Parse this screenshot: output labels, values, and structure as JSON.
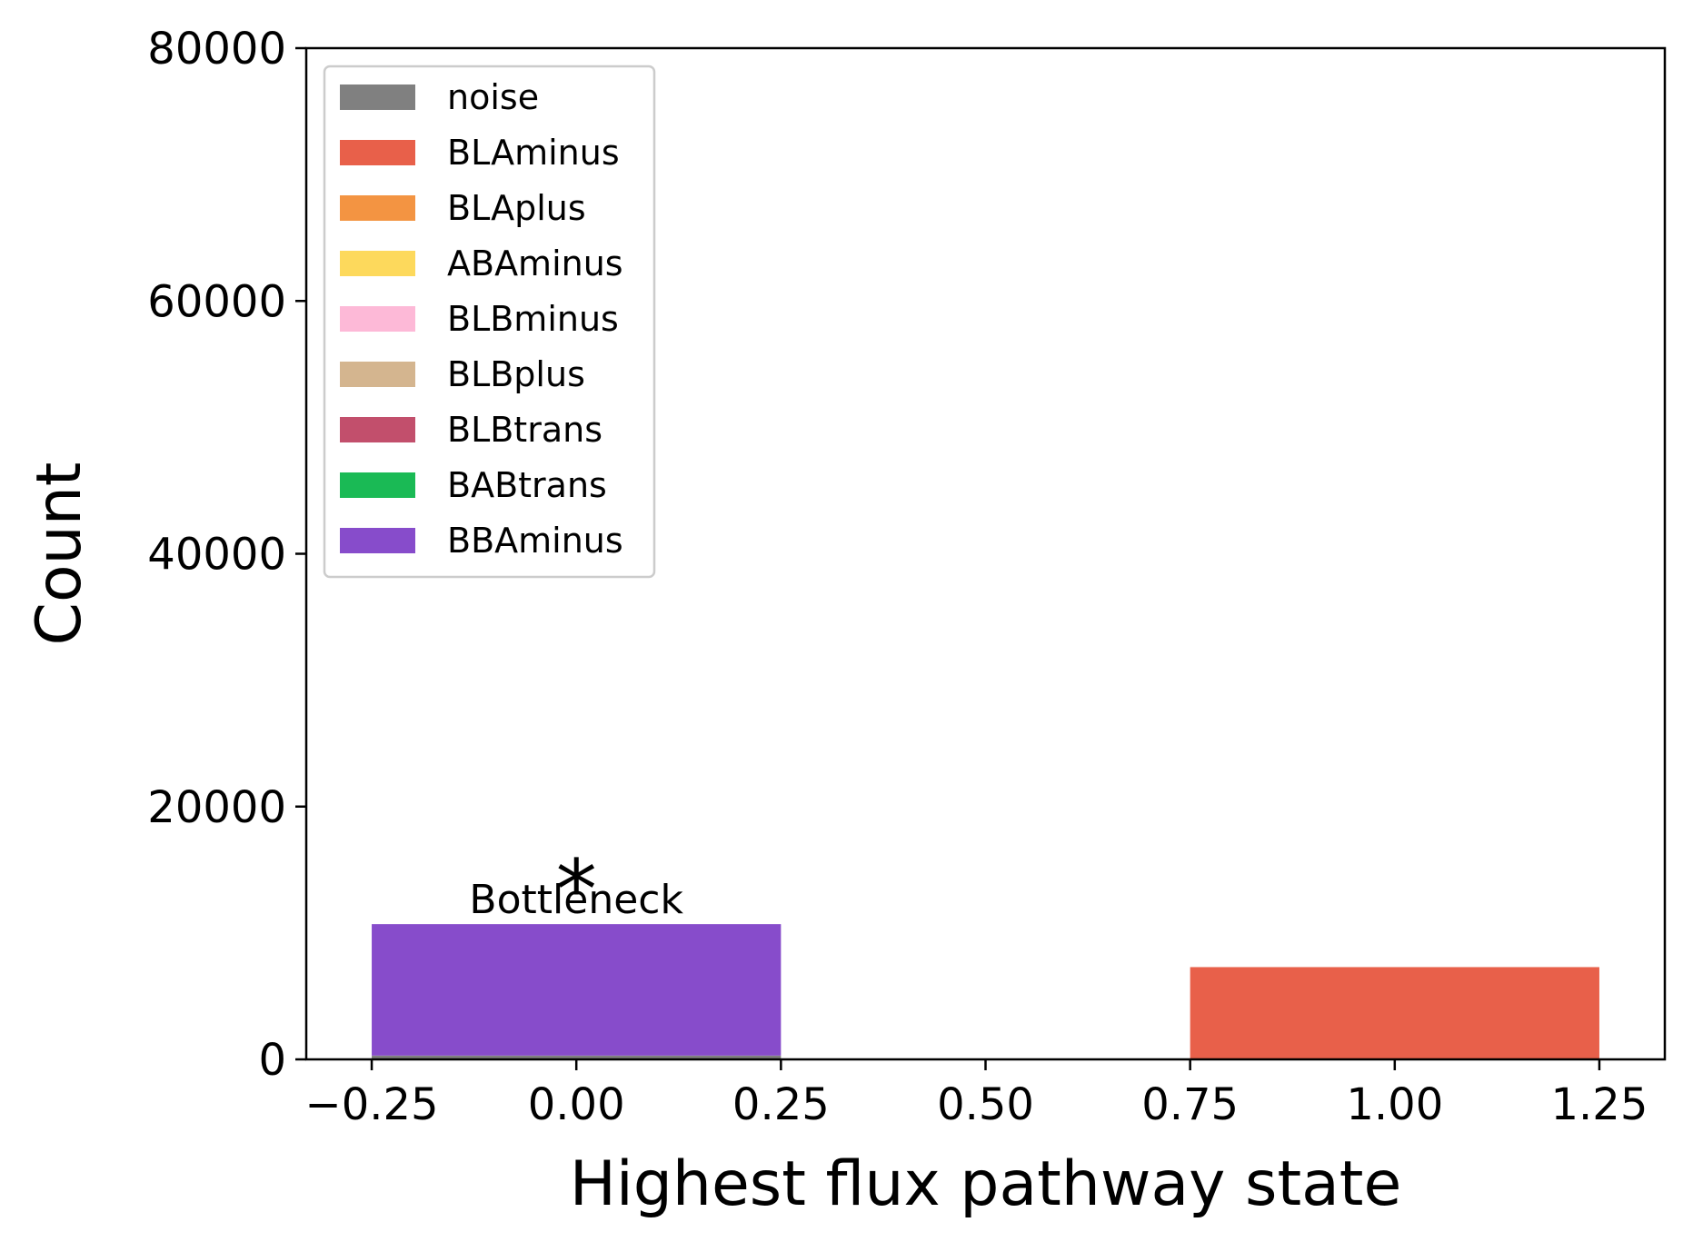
{
  "chart_data": {
    "type": "bar",
    "stacked": true,
    "title": "",
    "xlabel": "Highest flux pathway state",
    "ylabel": "Count",
    "xlim": [
      -0.33,
      1.33
    ],
    "ylim": [
      0,
      80000
    ],
    "x": [
      0,
      1
    ],
    "bar_width": 0.5,
    "xticks": [
      -0.25,
      0.0,
      0.25,
      0.5,
      0.75,
      1.0,
      1.25
    ],
    "xtick_labels": [
      "−0.25",
      "0.00",
      "0.25",
      "0.50",
      "0.75",
      "1.00",
      "1.25"
    ],
    "yticks": [
      0,
      20000,
      40000,
      60000,
      80000
    ],
    "ytick_labels": [
      "0",
      "20000",
      "40000",
      "60000",
      "80000"
    ],
    "grid": false,
    "legend_position": "top-left",
    "series": [
      {
        "name": "noise",
        "color": "#808080",
        "values": [
          300,
          0
        ]
      },
      {
        "name": "BLAminus",
        "color": "#e8604a",
        "values": [
          0,
          7300
        ]
      },
      {
        "name": "BLAplus",
        "color": "#f39442",
        "values": [
          0,
          0
        ]
      },
      {
        "name": "ABAminus",
        "color": "#fdd95c",
        "values": [
          0,
          0
        ]
      },
      {
        "name": "BLBminus",
        "color": "#fdb9d7",
        "values": [
          0,
          0
        ]
      },
      {
        "name": "BLBplus",
        "color": "#d4b58f",
        "values": [
          0,
          0
        ]
      },
      {
        "name": "BLBtrans",
        "color": "#c24f6c",
        "values": [
          0,
          0
        ]
      },
      {
        "name": "BABtrans",
        "color": "#1aba55",
        "values": [
          0,
          0
        ]
      },
      {
        "name": "BBAminus",
        "color": "#874ccb",
        "values": [
          10400,
          0
        ]
      }
    ],
    "annotations": [
      {
        "text": "*",
        "x": 0.0,
        "y": 14500
      },
      {
        "text": "Bottleneck",
        "x": 0.0,
        "y": 12800
      }
    ]
  }
}
